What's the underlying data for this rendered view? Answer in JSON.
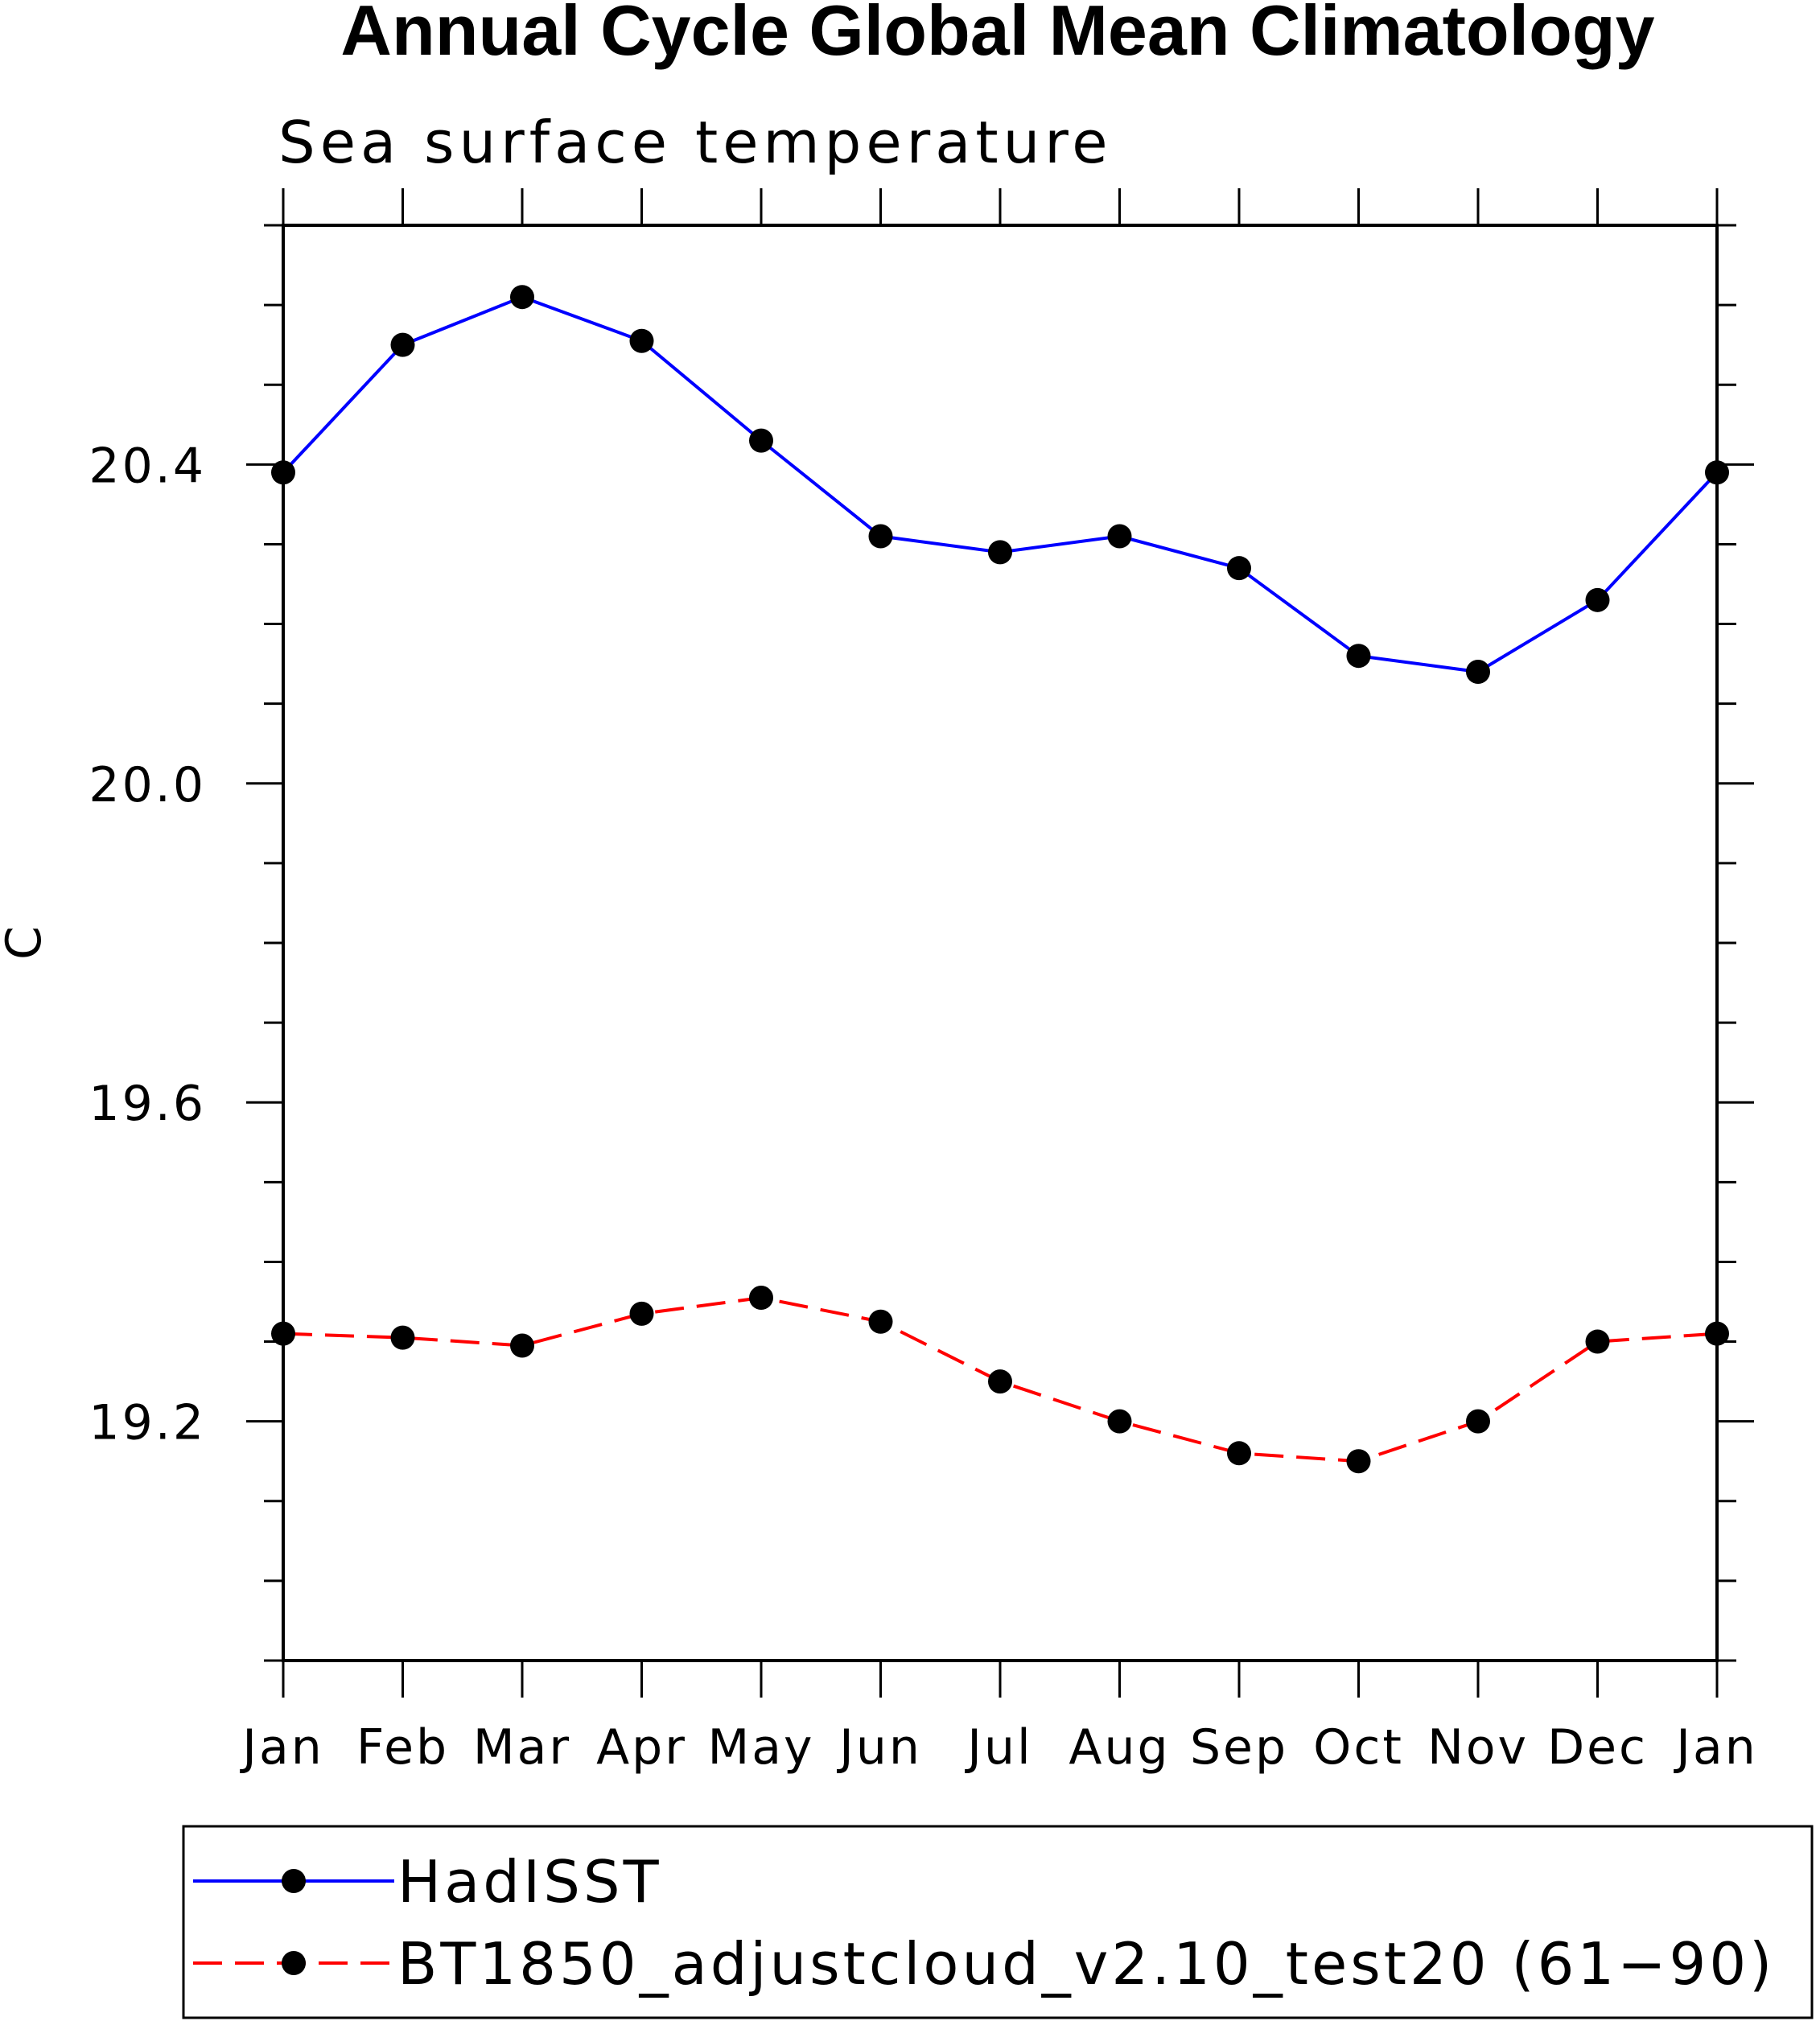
{
  "chart_data": {
    "type": "line",
    "title": "Annual Cycle Global Mean Climatology",
    "subtitle": "Sea surface temperature",
    "xlabel": "",
    "ylabel": "C",
    "categories": [
      "Jan",
      "Feb",
      "Mar",
      "Apr",
      "May",
      "Jun",
      "Jul",
      "Aug",
      "Sep",
      "Oct",
      "Nov",
      "Dec",
      "Jan"
    ],
    "ylim": [
      18.9,
      20.7
    ],
    "yticks": [
      19.2,
      19.6,
      20.0,
      20.4
    ],
    "ytick_labels": [
      "19.2",
      "19.6",
      "20.0",
      "20.4"
    ],
    "y_minor_step": 0.1,
    "series": [
      {
        "name": "HadISST",
        "color": "#0000ff",
        "dash": "solid",
        "values": [
          20.39,
          20.55,
          20.61,
          20.555,
          20.43,
          20.31,
          20.29,
          20.31,
          20.27,
          20.16,
          20.14,
          20.23,
          20.39
        ]
      },
      {
        "name": "BT1850_adjustcloud_v2.10_test20 (61−90)",
        "color": "#ff0000",
        "dash": "dashed",
        "values": [
          19.31,
          19.305,
          19.295,
          19.335,
          19.355,
          19.325,
          19.25,
          19.2,
          19.16,
          19.15,
          19.2,
          19.3,
          19.31
        ]
      }
    ],
    "legend_position": "bottom"
  }
}
